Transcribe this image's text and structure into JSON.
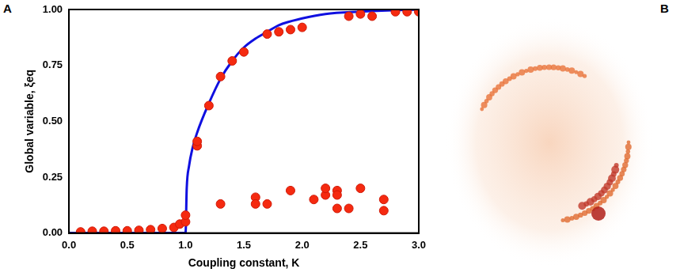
{
  "chart_data": {
    "type": "scatter",
    "x_label": "Coupling constant, K",
    "y_label": "Global variable, ξeq",
    "xlim": [
      0,
      3
    ],
    "ylim": [
      0,
      1
    ],
    "xticks": [
      {
        "value": 0,
        "label": "0.0"
      },
      {
        "value": 0.5,
        "label": "0.5"
      },
      {
        "value": 1,
        "label": "1.0"
      },
      {
        "value": 1.5,
        "label": "1.5"
      },
      {
        "value": 2,
        "label": "2.0"
      },
      {
        "value": 2.5,
        "label": "2.5"
      },
      {
        "value": 3,
        "label": "3.0"
      }
    ],
    "yticks": [
      {
        "value": 0,
        "label": "0.00"
      },
      {
        "value": 0.25,
        "label": "0.25"
      },
      {
        "value": 0.5,
        "label": "0.50"
      },
      {
        "value": 0.75,
        "label": "0.75"
      },
      {
        "value": 1,
        "label": "1.00"
      }
    ],
    "grid": false,
    "series": [
      {
        "type": "line",
        "color": "#1010e0",
        "marker": "none",
        "line_style": "solid",
        "x": [
          0,
          0.5,
          0.9,
          1.0,
          1.01,
          1.03,
          1.06,
          1.1,
          1.2,
          1.3,
          1.4,
          1.5,
          1.6,
          1.7,
          1.8,
          2.0,
          2.2,
          2.5,
          3.0
        ],
        "values": [
          0,
          0,
          0,
          0,
          0.2,
          0.3,
          0.38,
          0.45,
          0.58,
          0.69,
          0.77,
          0.83,
          0.87,
          0.9,
          0.93,
          0.96,
          0.98,
          0.99,
          1.0
        ]
      },
      {
        "type": "scatter",
        "color": "#f52a10",
        "marker": "circle",
        "x": [
          0.1,
          0.2,
          0.3,
          0.4,
          0.5,
          0.6,
          0.7,
          0.8,
          0.9,
          0.95,
          1.0,
          1.0,
          1.1,
          1.1,
          1.2,
          1.3,
          1.4,
          1.5,
          1.7,
          1.8,
          1.9,
          2.0,
          2.4,
          2.5,
          2.6,
          2.8,
          2.9,
          3.0,
          1.3,
          1.6,
          1.6,
          1.7,
          1.9,
          2.1,
          2.2,
          2.2,
          2.3,
          2.3,
          2.3,
          2.4,
          2.5,
          2.7,
          2.7
        ],
        "values": [
          0.005,
          0.008,
          0.008,
          0.01,
          0.01,
          0.012,
          0.015,
          0.02,
          0.025,
          0.04,
          0.05,
          0.08,
          0.39,
          0.41,
          0.57,
          0.7,
          0.77,
          0.81,
          0.89,
          0.9,
          0.91,
          0.92,
          0.97,
          0.98,
          0.97,
          0.99,
          0.99,
          0.99,
          0.13,
          0.16,
          0.13,
          0.13,
          0.19,
          0.15,
          0.17,
          0.2,
          0.11,
          0.19,
          0.17,
          0.11,
          0.2,
          0.15,
          0.1
        ]
      }
    ]
  },
  "panel_labels": [
    "A",
    "B"
  ]
}
